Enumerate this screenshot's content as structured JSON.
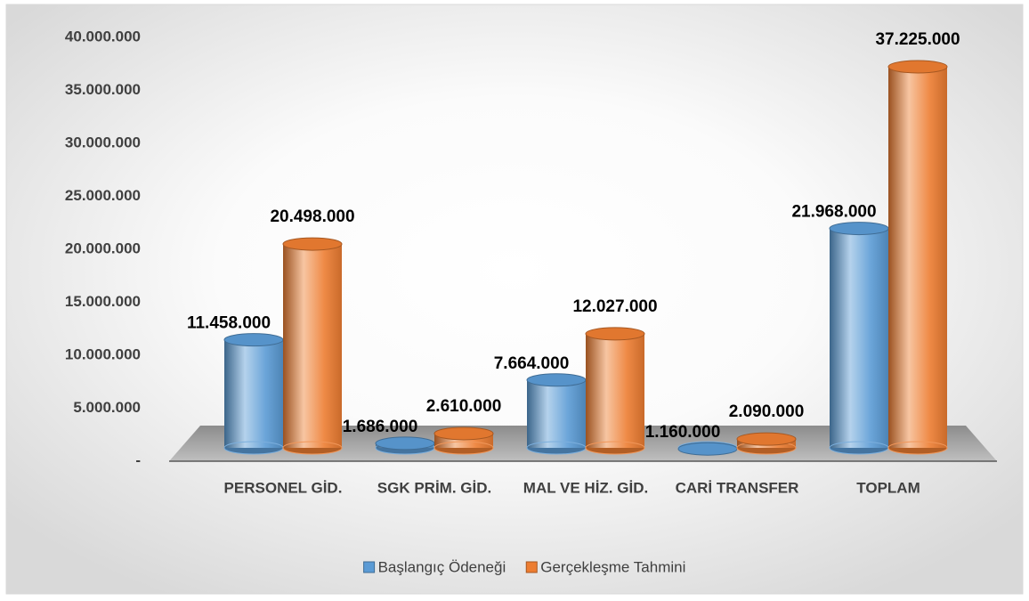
{
  "chart_data": {
    "type": "bar3d",
    "categories": [
      "PERSONEL GİD.",
      "SGK PRİM. GİD.",
      "MAL VE HİZ. GİD.",
      "CARİ TRANSFER",
      "TOPLAM"
    ],
    "series": [
      {
        "name": "Başlangıç Ödeneği",
        "color": "#5b9bd5",
        "values": [
          11458000,
          1686000,
          7664000,
          1160000,
          21968000
        ],
        "value_labels": [
          "11.458.000",
          "1.686.000",
          "7.664.000",
          "1.160.000",
          "21.968.000"
        ]
      },
      {
        "name": "Gerçekleşme Tahmini",
        "color": "#ed7d31",
        "values": [
          20498000,
          2610000,
          12027000,
          2090000,
          37225000
        ],
        "value_labels": [
          "20.498.000",
          "2.610.000",
          "12.027.000",
          "2.090.000",
          "37.225.000"
        ]
      }
    ],
    "ylim": [
      0,
      40000000
    ],
    "yticks": [
      {
        "value": 0,
        "label": "-"
      },
      {
        "value": 5000000,
        "label": "5.000.000"
      },
      {
        "value": 10000000,
        "label": "10.000.000"
      },
      {
        "value": 15000000,
        "label": "15.000.000"
      },
      {
        "value": 20000000,
        "label": "20.000.000"
      },
      {
        "value": 25000000,
        "label": "25.000.000"
      },
      {
        "value": 30000000,
        "label": "30.000.000"
      },
      {
        "value": 35000000,
        "label": "35.000.000"
      },
      {
        "value": 40000000,
        "label": "40.000.000"
      }
    ],
    "grid": false,
    "legend": "bottom"
  }
}
